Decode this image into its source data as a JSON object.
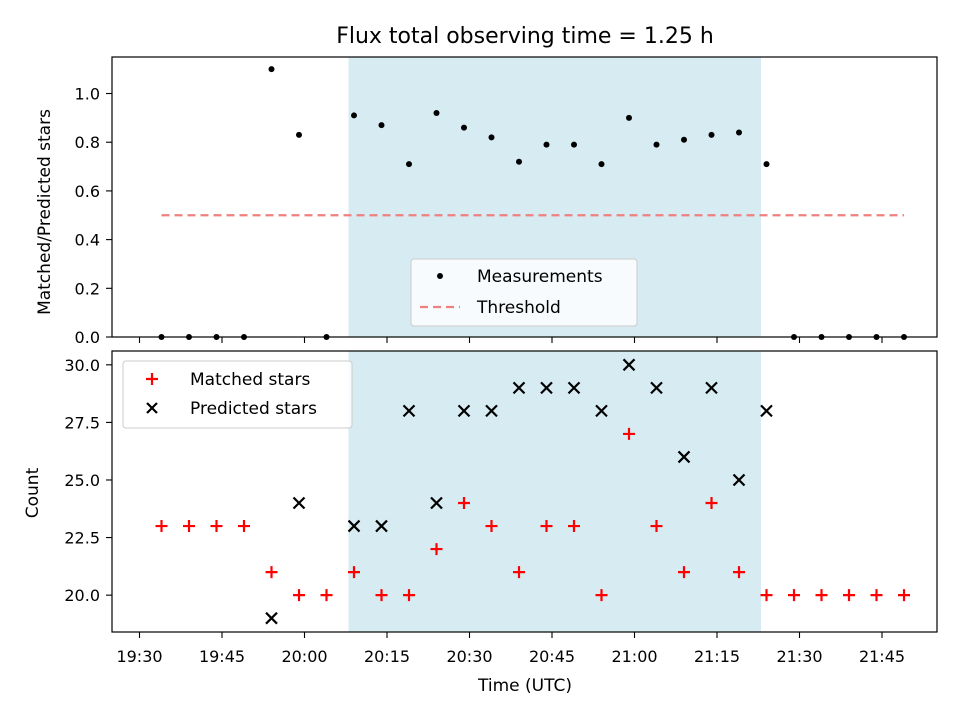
{
  "chart_data": [
    {
      "type": "scatter",
      "title": "Flux total observing time = 1.25 h",
      "ylabel": "Matched/Predicted stars",
      "xlabel": "",
      "ylim": [
        0,
        1.15
      ],
      "yticks": [
        "0.0",
        "0.2",
        "0.4",
        "0.6",
        "0.8",
        "1.0"
      ],
      "grid": false,
      "legend_position": "lower center",
      "shaded_interval": {
        "x_start": "20:08",
        "x_end": "21:23",
        "color": "#add8e6"
      },
      "series": [
        {
          "name": "Measurements",
          "marker": "dot",
          "color": "#000000",
          "points": [
            {
              "x": "19:34",
              "y": 0.0
            },
            {
              "x": "19:39",
              "y": 0.0
            },
            {
              "x": "19:44",
              "y": 0.0
            },
            {
              "x": "19:49",
              "y": 0.0
            },
            {
              "x": "19:54",
              "y": 1.1
            },
            {
              "x": "19:59",
              "y": 0.83
            },
            {
              "x": "20:04",
              "y": 0.0
            },
            {
              "x": "20:09",
              "y": 0.91
            },
            {
              "x": "20:14",
              "y": 0.87
            },
            {
              "x": "20:19",
              "y": 0.71
            },
            {
              "x": "20:24",
              "y": 0.92
            },
            {
              "x": "20:29",
              "y": 0.86
            },
            {
              "x": "20:34",
              "y": 0.82
            },
            {
              "x": "20:39",
              "y": 0.72
            },
            {
              "x": "20:44",
              "y": 0.79
            },
            {
              "x": "20:49",
              "y": 0.79
            },
            {
              "x": "20:54",
              "y": 0.71
            },
            {
              "x": "20:59",
              "y": 0.9
            },
            {
              "x": "21:04",
              "y": 0.79
            },
            {
              "x": "21:09",
              "y": 0.81
            },
            {
              "x": "21:14",
              "y": 0.83
            },
            {
              "x": "21:19",
              "y": 0.84
            },
            {
              "x": "21:24",
              "y": 0.71
            },
            {
              "x": "21:29",
              "y": 0.0
            },
            {
              "x": "21:34",
              "y": 0.0
            },
            {
              "x": "21:39",
              "y": 0.0
            },
            {
              "x": "21:44",
              "y": 0.0
            },
            {
              "x": "21:49",
              "y": 0.0
            }
          ]
        },
        {
          "name": "Threshold",
          "line_style": "dashed",
          "color": "#f08080",
          "points": [
            {
              "x": "19:34",
              "y": 0.5
            },
            {
              "x": "21:49",
              "y": 0.5
            }
          ]
        }
      ]
    },
    {
      "type": "scatter",
      "title": "",
      "ylabel": "Count",
      "xlabel": "Time (UTC)",
      "ylim": [
        18.4,
        30.6
      ],
      "yticks": [
        "20.0",
        "22.5",
        "25.0",
        "27.5",
        "30.0"
      ],
      "xticks": [
        "19:30",
        "19:45",
        "20:00",
        "20:15",
        "20:30",
        "20:45",
        "21:00",
        "21:15",
        "21:30",
        "21:45"
      ],
      "grid": false,
      "legend_position": "upper left",
      "shaded_interval": {
        "x_start": "20:08",
        "x_end": "21:23",
        "color": "#add8e6"
      },
      "series": [
        {
          "name": "Matched stars",
          "marker": "plus",
          "color": "#ff0000",
          "points": [
            {
              "x": "19:34",
              "y": 23
            },
            {
              "x": "19:39",
              "y": 23
            },
            {
              "x": "19:44",
              "y": 23
            },
            {
              "x": "19:49",
              "y": 23
            },
            {
              "x": "19:54",
              "y": 21
            },
            {
              "x": "19:59",
              "y": 20
            },
            {
              "x": "20:04",
              "y": 20
            },
            {
              "x": "20:09",
              "y": 21
            },
            {
              "x": "20:14",
              "y": 20
            },
            {
              "x": "20:19",
              "y": 20
            },
            {
              "x": "20:24",
              "y": 22
            },
            {
              "x": "20:29",
              "y": 24
            },
            {
              "x": "20:34",
              "y": 23
            },
            {
              "x": "20:39",
              "y": 21
            },
            {
              "x": "20:44",
              "y": 23
            },
            {
              "x": "20:49",
              "y": 23
            },
            {
              "x": "20:54",
              "y": 20
            },
            {
              "x": "20:59",
              "y": 27
            },
            {
              "x": "21:04",
              "y": 23
            },
            {
              "x": "21:09",
              "y": 21
            },
            {
              "x": "21:14",
              "y": 24
            },
            {
              "x": "21:19",
              "y": 21
            },
            {
              "x": "21:24",
              "y": 20
            },
            {
              "x": "21:29",
              "y": 20
            },
            {
              "x": "21:34",
              "y": 20
            },
            {
              "x": "21:39",
              "y": 20
            },
            {
              "x": "21:44",
              "y": 20
            },
            {
              "x": "21:49",
              "y": 20
            }
          ]
        },
        {
          "name": "Predicted stars",
          "marker": "x",
          "color": "#000000",
          "points": [
            {
              "x": "19:54",
              "y": 19
            },
            {
              "x": "19:59",
              "y": 24
            },
            {
              "x": "20:09",
              "y": 23
            },
            {
              "x": "20:14",
              "y": 23
            },
            {
              "x": "20:19",
              "y": 28
            },
            {
              "x": "20:24",
              "y": 24
            },
            {
              "x": "20:29",
              "y": 28
            },
            {
              "x": "20:34",
              "y": 28
            },
            {
              "x": "20:39",
              "y": 29
            },
            {
              "x": "20:44",
              "y": 29
            },
            {
              "x": "20:49",
              "y": 29
            },
            {
              "x": "20:54",
              "y": 28
            },
            {
              "x": "20:59",
              "y": 30
            },
            {
              "x": "21:04",
              "y": 29
            },
            {
              "x": "21:09",
              "y": 26
            },
            {
              "x": "21:14",
              "y": 29
            },
            {
              "x": "21:19",
              "y": 25
            },
            {
              "x": "21:24",
              "y": 28
            }
          ]
        }
      ]
    }
  ]
}
